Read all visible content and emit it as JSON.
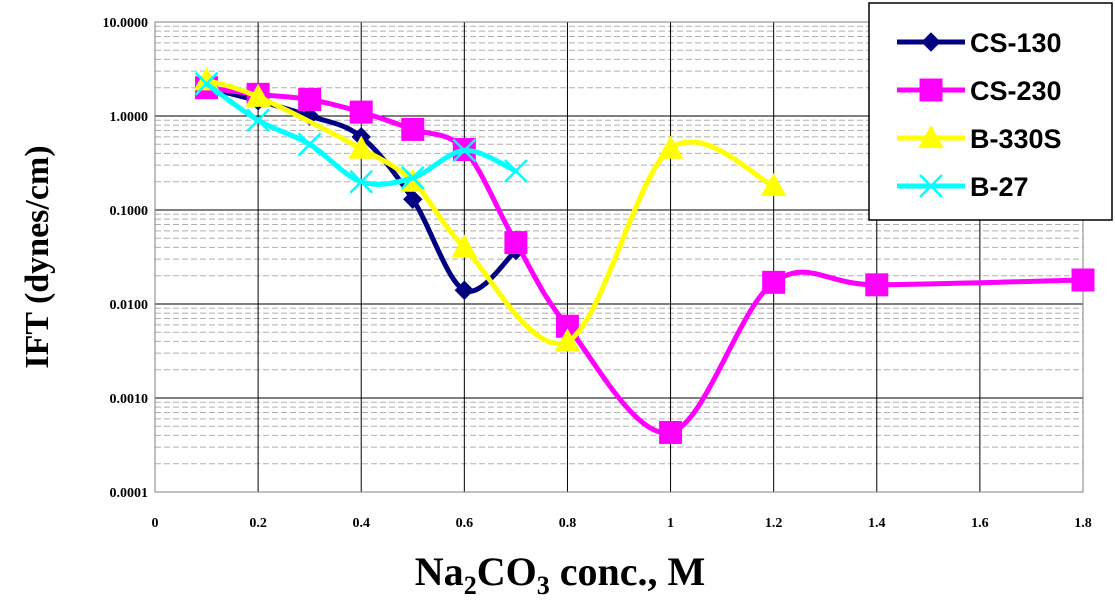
{
  "chart_data": {
    "type": "line",
    "xlabel": {
      "main": "Na",
      "sub1": "2",
      "mid": "CO",
      "sub2": "3",
      "tail": " conc., M"
    },
    "ylabel": "IFT (dynes/cm)",
    "xlim": [
      0,
      1.8
    ],
    "ylim": [
      0.0001,
      10
    ],
    "yscale": "log",
    "x_ticks": [
      "0",
      "0.2",
      "0.4",
      "0.6",
      "0.8",
      "1",
      "1.2",
      "1.4",
      "1.6",
      "1.8"
    ],
    "y_ticks": [
      "0.0001",
      "0.0010",
      "0.0100",
      "0.1000",
      "1.0000",
      "10.0000"
    ],
    "grid": true,
    "legend_position": "top-right",
    "series": [
      {
        "name": "CS-130",
        "color": "#000080",
        "marker": "diamond",
        "x": [
          0.1,
          0.2,
          0.3,
          0.4,
          0.5,
          0.6,
          0.7
        ],
        "y": [
          2.0,
          1.45,
          1.0,
          0.6,
          0.13,
          0.014,
          0.037
        ]
      },
      {
        "name": "CS-230",
        "color": "#ff00ff",
        "marker": "square",
        "x": [
          0.1,
          0.2,
          0.3,
          0.4,
          0.5,
          0.6,
          0.7,
          0.8,
          1.0,
          1.2,
          1.4,
          1.8
        ],
        "y": [
          2.0,
          1.7,
          1.5,
          1.1,
          0.72,
          0.44,
          0.045,
          0.0058,
          0.00043,
          0.017,
          0.016,
          0.018
        ]
      },
      {
        "name": "B-330S",
        "color": "#ffff00",
        "marker": "triangle",
        "x": [
          0.1,
          0.2,
          0.4,
          0.5,
          0.6,
          0.8,
          1.0,
          1.2
        ],
        "y": [
          2.4,
          1.6,
          0.45,
          0.2,
          0.04,
          0.004,
          0.45,
          0.18
        ]
      },
      {
        "name": "B-27",
        "color": "#00ffff",
        "marker": "x",
        "x": [
          0.1,
          0.2,
          0.3,
          0.4,
          0.5,
          0.6,
          0.7
        ],
        "y": [
          2.2,
          0.9,
          0.5,
          0.2,
          0.22,
          0.43,
          0.26
        ]
      }
    ]
  }
}
